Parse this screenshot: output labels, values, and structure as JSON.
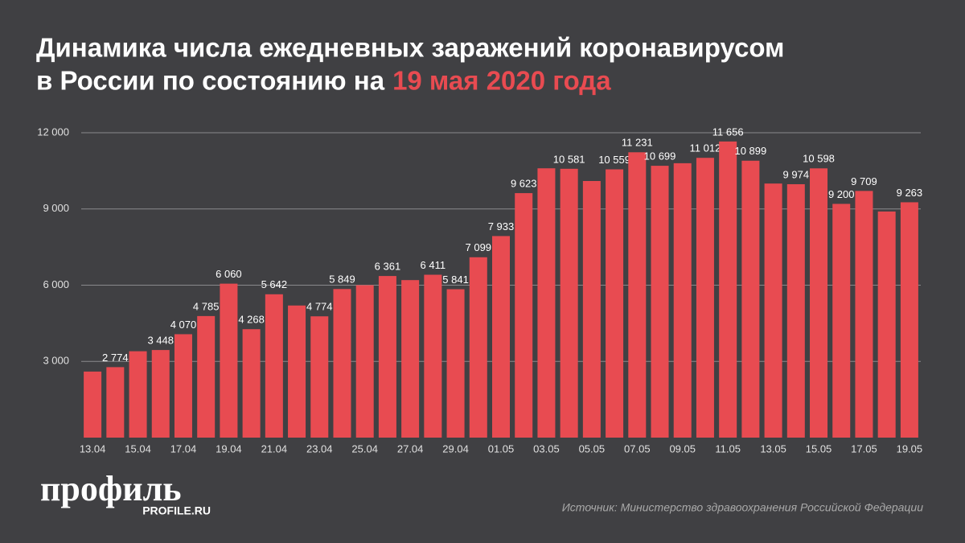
{
  "chart_data": {
    "type": "bar",
    "title": {
      "line1": "Динамика числа ежедневных заражений коронавирусом",
      "line2": "в России по состоянию на",
      "highlight": "19 мая 2020 года"
    },
    "categories": [
      "13.04",
      null,
      "15.04",
      null,
      "17.04",
      null,
      "19.04",
      null,
      "21.04",
      null,
      "23.04",
      null,
      "25.04",
      null,
      "27.04",
      null,
      "29.04",
      null,
      "01.05",
      null,
      "03.05",
      null,
      "05.05",
      null,
      "07.05",
      null,
      "09.05",
      null,
      "11.05",
      null,
      "13.05",
      null,
      "15.05",
      null,
      "17.05",
      null,
      "19.05"
    ],
    "values": [
      2600,
      2774,
      3400,
      3448,
      4070,
      4785,
      6060,
      4268,
      5642,
      5200,
      4774,
      5849,
      6000,
      6361,
      6200,
      6411,
      5841,
      7099,
      7933,
      9623,
      10600,
      10581,
      10100,
      10559,
      11231,
      10699,
      10800,
      11012,
      11656,
      10899,
      10000,
      9974,
      10598,
      9200,
      9709,
      8900,
      9263
    ],
    "value_labels": [
      null,
      "2 774",
      null,
      "3 448",
      "4 070",
      "4 785",
      "6 060",
      "4 268",
      "5 642",
      null,
      "4 774",
      "5 849",
      null,
      "6 361",
      null,
      "6 411",
      "5 841",
      "7 099",
      "7 933",
      "9 623",
      null,
      "10 581",
      null,
      "10 559",
      "11 231",
      "10 699",
      null,
      "11 012",
      "11 656",
      "10 899",
      null,
      "9 974",
      "10 598",
      "9 200",
      "9 709",
      null,
      "9 263"
    ],
    "color": "#e84b51",
    "ylim": [
      0,
      12000
    ],
    "yticks": [
      {
        "value": 3000,
        "label": "3 000"
      },
      {
        "value": 6000,
        "label": "6 000"
      },
      {
        "value": 9000,
        "label": "9 000"
      },
      {
        "value": 12000,
        "label": "12 000"
      }
    ],
    "grid": true,
    "logo": "профиль",
    "logo_url": "PROFILE.RU",
    "source": "Источник: Министерство здравоохранения Российской Федерации"
  }
}
